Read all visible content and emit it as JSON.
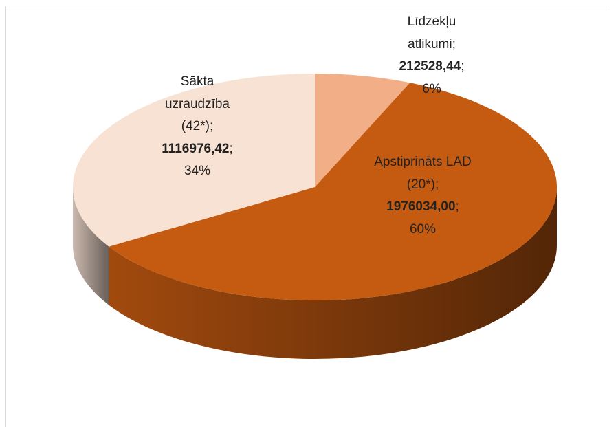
{
  "chart_data": {
    "type": "pie",
    "style": "3d",
    "categories": [
      "Līdzekļu atlikumi",
      "Apstiprināts LAD (20*)",
      "Sākta uzraudzība (42*)"
    ],
    "values": [
      212528.44,
      1976034.0,
      1116976.42
    ],
    "value_labels": [
      "212528,44",
      "1976034,00",
      "1116976,42"
    ],
    "percents": [
      6,
      60,
      34
    ],
    "percent_labels": [
      "6%",
      "60%",
      "34%"
    ],
    "label_separator": ";",
    "colors": [
      "#f2ae86",
      "#c55a11",
      "#f8e2d4"
    ]
  }
}
